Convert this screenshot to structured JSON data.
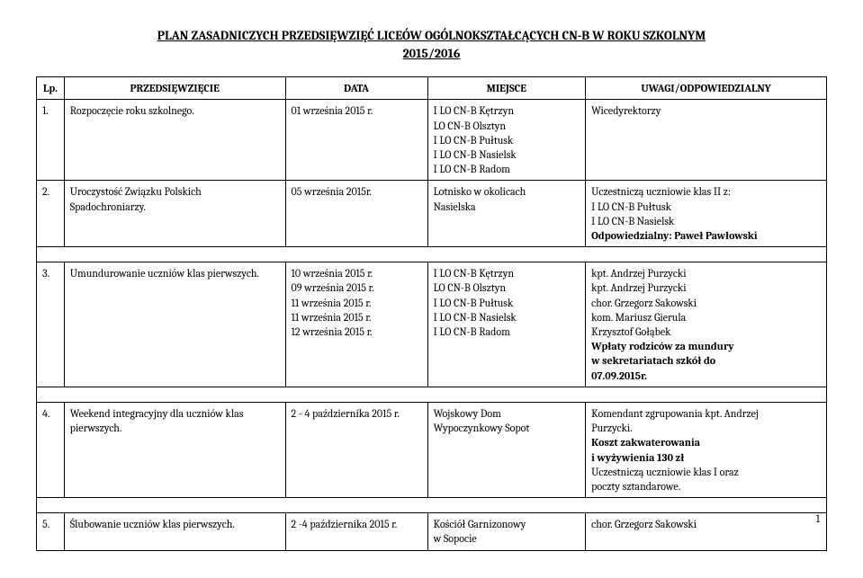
{
  "title_line1": "PLAN ZASADNICZYCH PRZEDSIĘWZIĘĆ LICEÓW OGÓLNOKSZTAŁCĄCYCH CN-B W ROKU SZKOLNYM",
  "title_line2": "2015/2016",
  "columns": {
    "lp": "Lp.",
    "przed": "PRZEDSIĘWZIĘCIE",
    "data": "DATA",
    "miejsce": "MIEJSCE",
    "uwagi": "UWAGI/ODPOWIEDZIALNY"
  },
  "rows": [
    {
      "lp": "1.",
      "przed": "Rozpoczęcie roku szkolnego.",
      "data": "01 września 2015 r.",
      "miejsce_lines": [
        "I LO CN-B Kętrzyn",
        "LO CN-B Olsztyn",
        "I LO CN-B Pułtusk",
        "I LO CN-B Nasielsk",
        "I LO CN-B Radom"
      ],
      "uwagi_lines": [
        "Wicedyrektorzy"
      ]
    },
    {
      "lp": "2.",
      "przed": "Uroczystość Związku Polskich Spadochroniarzy.",
      "data": "05 września 2015r.",
      "miejsce_lines": [
        "Lotnisko w okolicach",
        "Nasielska"
      ],
      "uwagi_lines": [
        "Uczestniczą uczniowie klas II z:",
        "I LO CN-B Pułtusk",
        "I LO CN-B Nasielsk"
      ],
      "uwagi_bold_tail": "Odpowiedzialny: Paweł Pawłowski"
    },
    {
      "group_break": true
    },
    {
      "lp": "3.",
      "przed": "Umundurowanie uczniów klas pierwszych.",
      "data_lines": [
        "10 września 2015 r.",
        "09 września 2015 r.",
        "11 września 2015 r.",
        "11 września 2015 r.",
        "12 września 2015 r."
      ],
      "miejsce_lines": [
        "I LO CN-B Kętrzyn",
        "LO CN-B Olsztyn",
        "I LO CN-B Pułtusk",
        "I LO CN-B Nasielsk",
        "I LO CN-B Radom"
      ],
      "uwagi_lines": [
        "kpt. Andrzej Purzycki",
        "kpt. Andrzej Purzycki",
        "chor. Grzegorz Sakowski",
        "kom. Mariusz Gierula",
        "Krzysztof Gołąbek"
      ],
      "uwagi_bold_lines": [
        "Wpłaty rodziców za mundury",
        "w sekretariatach szkół do",
        "07.09.2015r."
      ]
    },
    {
      "group_break": true
    },
    {
      "lp": "4.",
      "przed_lines": [
        "Weekend integracyjny dla uczniów klas",
        "pierwszych."
      ],
      "data": "2 - 4 października 2015 r.",
      "miejsce_lines": [
        "Wojskowy Dom",
        "Wypoczynkowy Sopot"
      ],
      "uwagi_mixed": [
        {
          "text": "Komendant zgrupowania kpt. Andrzej",
          "bold": false
        },
        {
          "text": "Purzycki.",
          "bold": false
        },
        {
          "text": "Koszt zakwaterowania",
          "bold": true
        },
        {
          "text": "i wyżywienia 130 zł",
          "bold": true
        },
        {
          "text": "Uczestniczą uczniowie klas I oraz",
          "bold": false
        },
        {
          "text": "poczty sztandarowe.",
          "bold": false
        }
      ]
    },
    {
      "group_break": true
    },
    {
      "lp": "5.",
      "przed": "Ślubowanie uczniów klas pierwszych.",
      "data": "2 -4 października 2015 r.",
      "miejsce_lines": [
        "Kościół Garnizonowy",
        "w Sopocie"
      ],
      "uwagi_lines": [
        "chor. Grzegorz Sakowski"
      ]
    }
  ],
  "page_number": "1"
}
